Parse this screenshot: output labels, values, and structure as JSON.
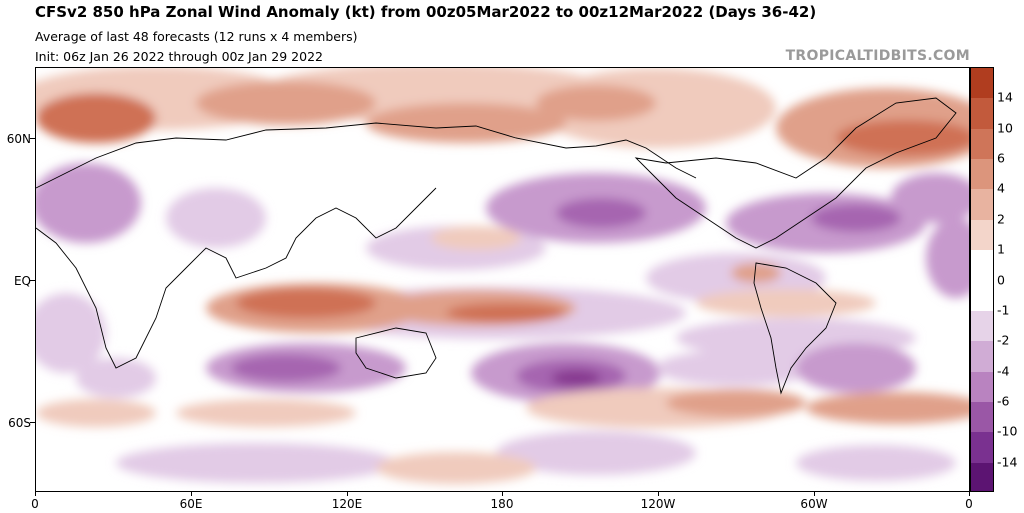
{
  "header": {
    "title": "CFSv2 850 hPa Zonal Wind Anomaly (kt) from 00z05Mar2022 to 00z12Mar2022 (Days 36-42)",
    "subtitle": "Average of last 48 forecasts (12 runs x 4 members)",
    "init": "Init: 06z Jan 26 2022 through 00z Jan 29 2022",
    "brand": "TROPICALTIDBITS.COM"
  },
  "lat_labels": [
    "60N",
    "EQ",
    "60S"
  ],
  "lon_labels": [
    "0",
    "60E",
    "120E",
    "180",
    "120W",
    "60W",
    "0"
  ],
  "colorbar": {
    "labels": [
      "14",
      "10",
      "6",
      "4",
      "2",
      "1",
      "0",
      "-1",
      "-2",
      "-4",
      "-6",
      "-10",
      "-14"
    ],
    "colors": [
      "#b03d1f",
      "#c25a3c",
      "#cf7559",
      "#dc957c",
      "#e8b3a0",
      "#f3d5ca",
      "#ffffff",
      "#ffffff",
      "#e6d3e8",
      "#d0acd5",
      "#b983c0",
      "#9a57a6",
      "#7a3190",
      "#5c1472"
    ]
  },
  "fill_colors": {
    "pos_weak": "#f0cbbd",
    "pos_mid": "#e0a08a",
    "pos_strong": "#cf7154",
    "pos_max": "#bf5537",
    "neg_weak": "#e2cbe6",
    "neg_mid": "#c79acd",
    "neg_strong": "#a665b0",
    "neg_max": "#86398f"
  }
}
